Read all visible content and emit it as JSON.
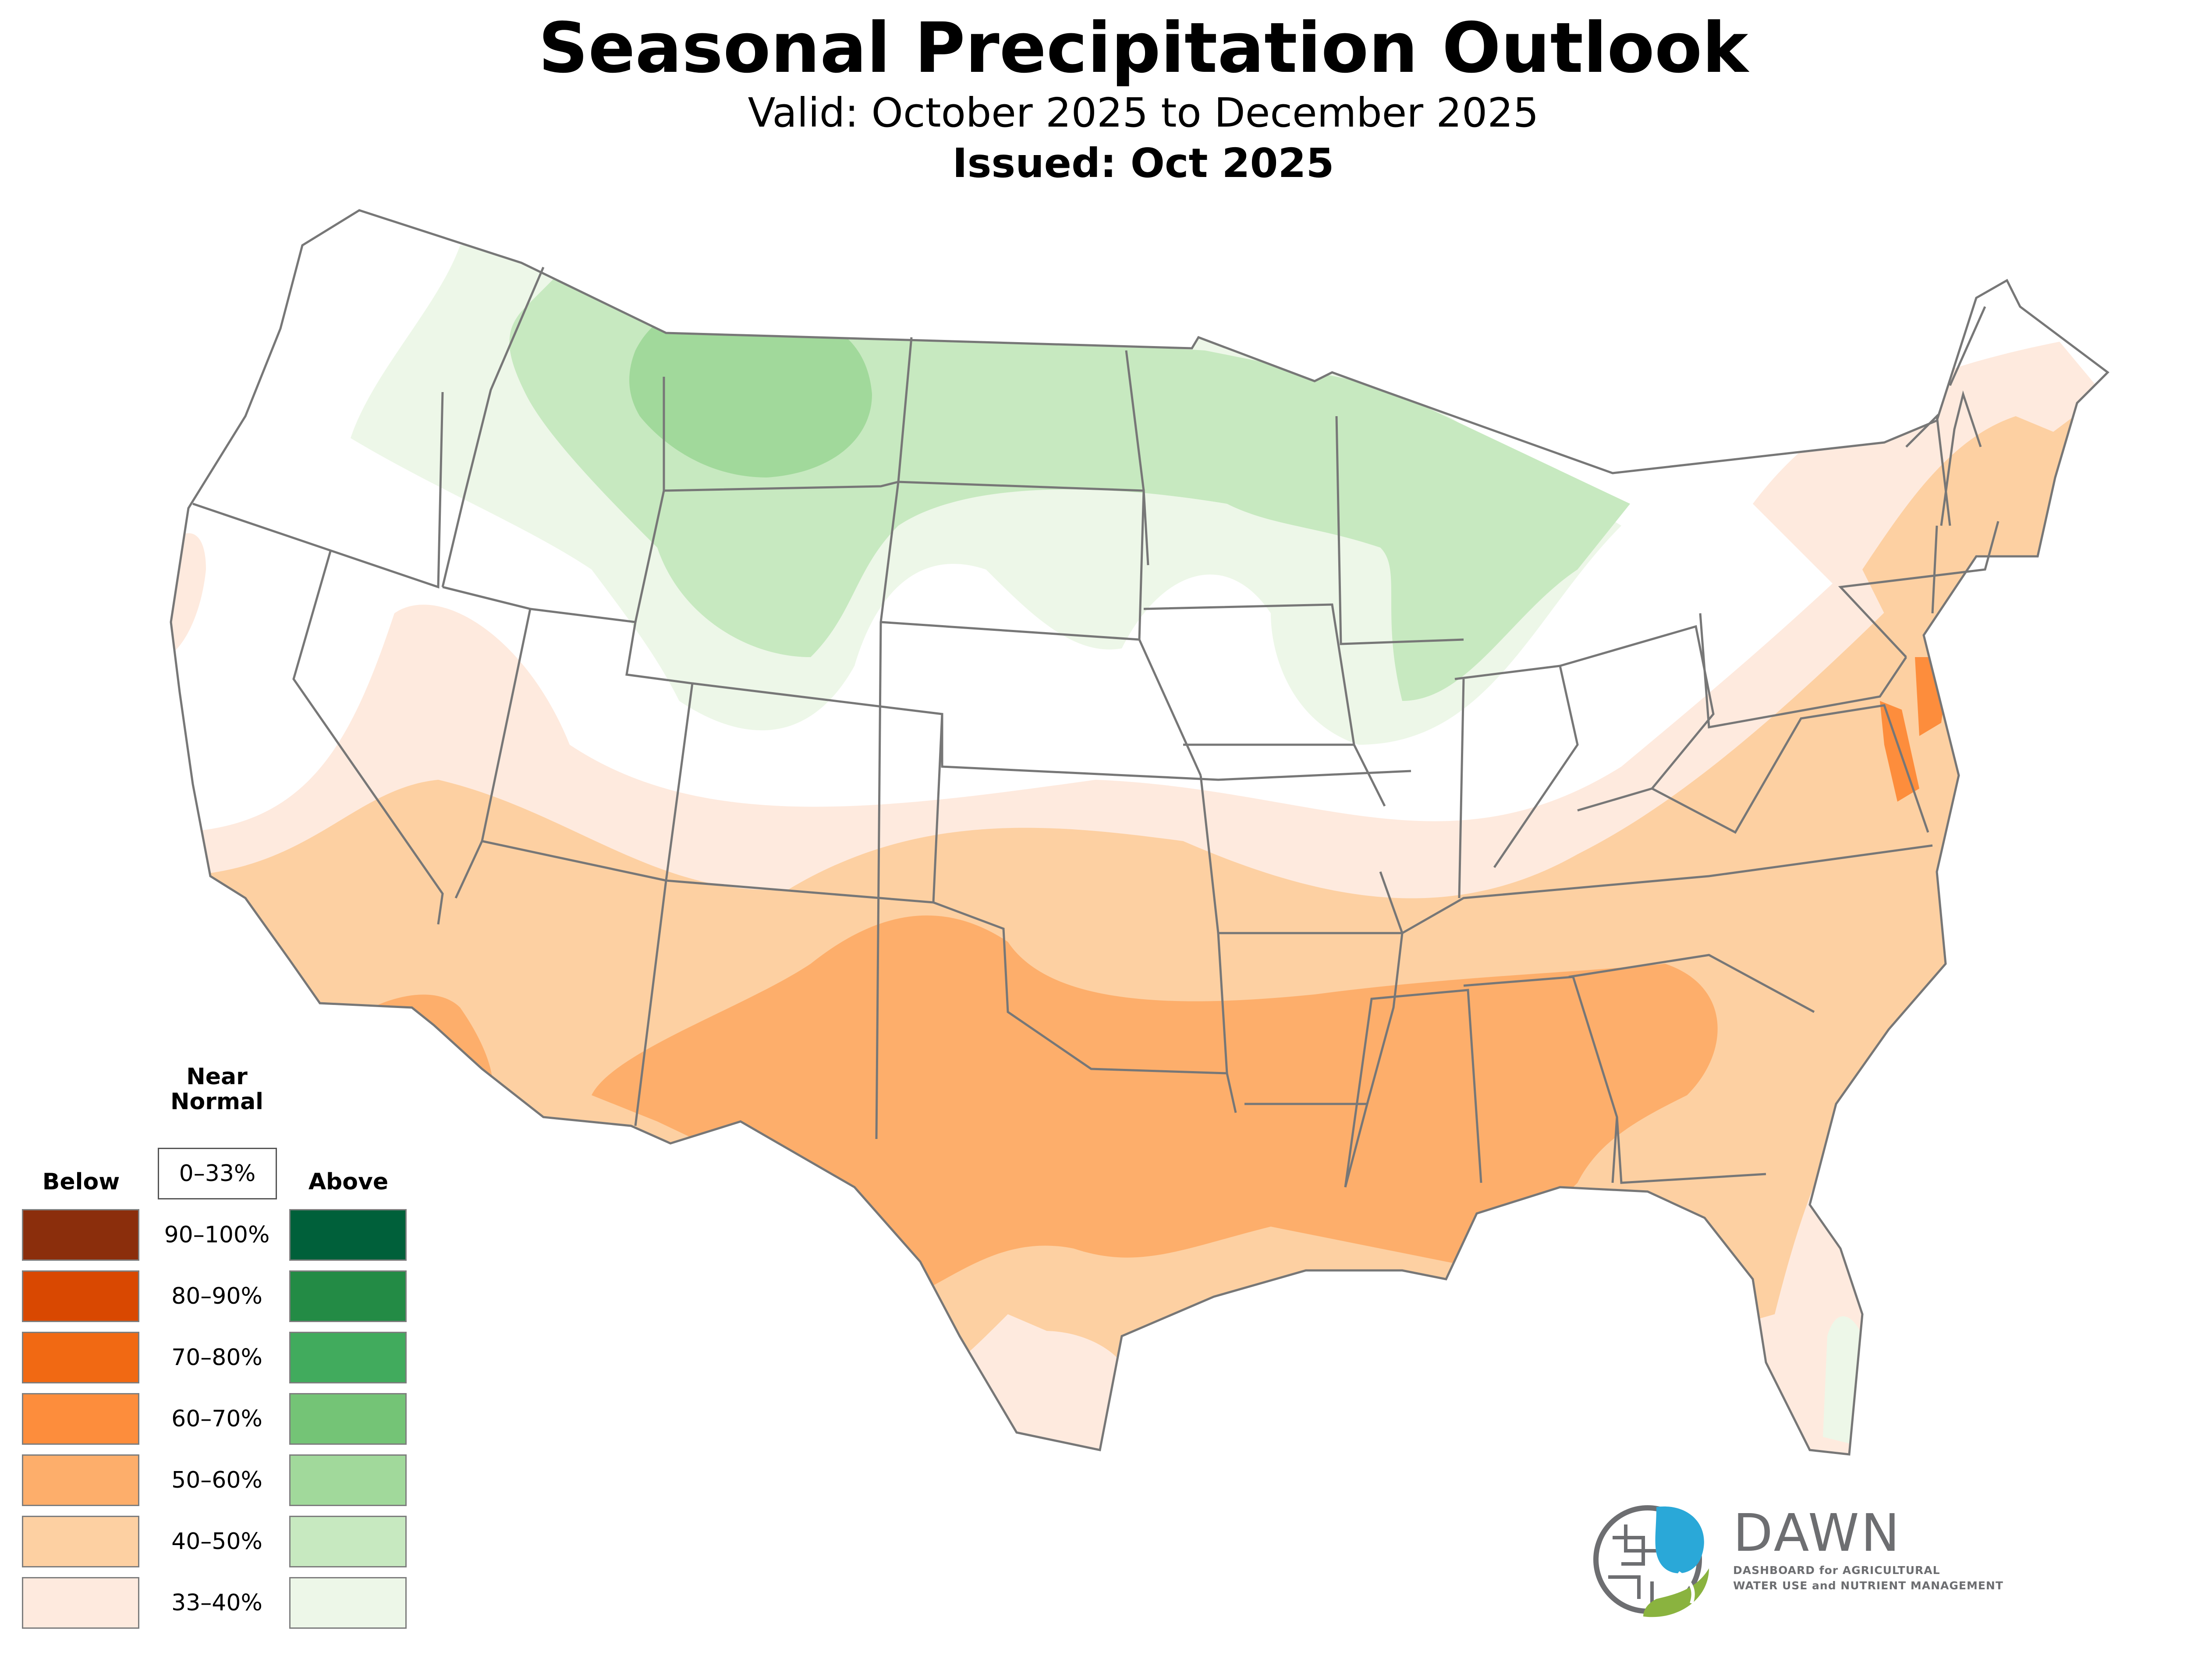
{
  "header": {
    "title": "Seasonal Precipitation Outlook",
    "subtitle": "Valid: October 2025 to December 2025",
    "issued": "Issued: Oct 2025"
  },
  "legend": {
    "near_normal_heading_line1": "Near",
    "near_normal_heading_line2": "Normal",
    "near_normal_range": "0–33%",
    "below_heading": "Below",
    "above_heading": "Above",
    "ranges": [
      "90–100%",
      "80–90%",
      "70–80%",
      "60–70%",
      "50–60%",
      "40–50%",
      "33–40%"
    ],
    "below_colors": [
      "#8b2e0c",
      "#d94801",
      "#f16913",
      "#fd8d3c",
      "#fdae6b",
      "#fdd0a2",
      "#feeade"
    ],
    "above_colors": [
      "#00603a",
      "#238b45",
      "#41ab5d",
      "#74c476",
      "#a1d99b",
      "#c7e9c0",
      "#edf7e8"
    ]
  },
  "map": {
    "region": "Contiguous United States",
    "categories": {
      "below_33_40": "#feeade",
      "below_40_50": "#fdd0a2",
      "below_50_60": "#fdae6b",
      "below_60_70": "#fd8d3c",
      "above_33_40": "#edf7e8",
      "above_40_50": "#c7e9c0",
      "above_50_60": "#a1d99b",
      "near_normal": "#ffffff",
      "state_border": "#777777"
    }
  },
  "logo": {
    "name": "DAWN",
    "tagline_line1": "DASHBOARD for AGRICULTURAL",
    "tagline_line2": "WATER USE and NUTRIENT MANAGEMENT",
    "colors": {
      "blue": "#2aa8d8",
      "green": "#8ab33f",
      "gray": "#6d6e71"
    }
  }
}
